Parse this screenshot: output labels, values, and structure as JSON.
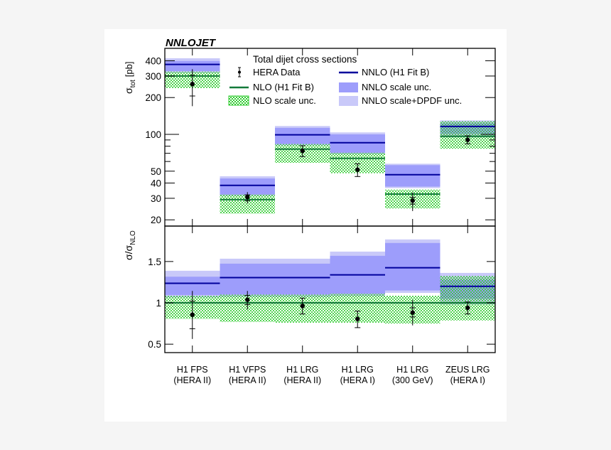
{
  "chart_data": {
    "type": "bar",
    "brand_label": "NNLOJET",
    "legend_title": "Total dijet cross sections",
    "legend": {
      "data": "HERA Data",
      "nlo": "NLO (H1 Fit B)",
      "nlo_band": "NLO scale unc.",
      "nnlo": "NNLO (H1 Fit B)",
      "nnlo_scale": "NNLO scale unc.",
      "nnlo_dpdf": "NNLO scale+DPDF unc."
    },
    "legend_placement": "top-right",
    "colors": {
      "nnlo_line": "#00009c",
      "nnlo_scale": "#9d9dfb",
      "nnlo_dpdf": "#c9c9f9",
      "nlo_line": "#137a3a",
      "nlo_hatch": "#33cc33",
      "data": "#000000"
    },
    "top_panel": {
      "ylabel": "σ",
      "ylabel_sub": "tot",
      "ylabel_unit": "[pb]",
      "scale": "log",
      "ylim": [
        17.8,
        505
      ],
      "yticks": [
        "20",
        "30",
        "40",
        "50",
        "100",
        "200",
        "300",
        "400"
      ]
    },
    "ratio_panel": {
      "ylabel": "σ/σ",
      "ylabel_sub": "NLO",
      "scale": "linear",
      "ylim": [
        0.4,
        1.92
      ],
      "yticks": [
        "0.5",
        "1",
        "1.5"
      ]
    },
    "categories": [
      {
        "line1": "H1 FPS",
        "line2": "(HERA II)"
      },
      {
        "line1": "H1 VFPS",
        "line2": "(HERA II)"
      },
      {
        "line1": "H1 LRG",
        "line2": "(HERA II)"
      },
      {
        "line1": "H1 LRG",
        "line2": "(HERA I)"
      },
      {
        "line1": "H1 LRG",
        "line2": "(300 GeV)"
      },
      {
        "line1": "ZEUS LRG",
        "line2": "(HERA I)"
      }
    ],
    "cross_sections_pb": [
      {
        "nlo": 300,
        "nlo_band": [
          239,
          326
        ],
        "nnlo": 373,
        "nnlo_scale": [
          329,
          398
        ],
        "nnlo_dpdf": [
          318,
          419
        ],
        "data": 258,
        "err_inner": [
          206,
          304
        ],
        "err_outer": [
          170,
          341
        ]
      },
      {
        "nlo": 29.3,
        "nlo_band": [
          22.5,
          32.2
        ],
        "nnlo": 38.3,
        "nnlo_scale": [
          32.2,
          43.6
        ],
        "nnlo_dpdf": [
          31.3,
          45.4
        ],
        "data": 30.7,
        "err_inner": [
          28.7,
          32.0
        ],
        "err_outer": [
          27.2,
          33.7
        ]
      },
      {
        "nlo": 75.8,
        "nlo_band": [
          58.5,
          83.4
        ],
        "nnlo": 99.1,
        "nnlo_scale": [
          83.4,
          113
        ],
        "nnlo_dpdf": [
          81,
          117
        ],
        "data": 73.3,
        "err_inner": [
          65.8,
          80.7
        ],
        "err_outer": [
          65.8,
          80.7
        ]
      },
      {
        "nlo": 63.7,
        "nlo_band": [
          48.1,
          70.7
        ],
        "nnlo": 85.5,
        "nnlo_scale": [
          70.7,
          100
        ],
        "nnlo_dpdf": [
          68.8,
          103.7
        ],
        "data": 51.4,
        "err_inner": [
          45.2,
          57.5
        ],
        "err_outer": [
          45.2,
          57.5
        ]
      },
      {
        "nlo": 32.5,
        "nlo_band": [
          24.8,
          35.3
        ],
        "nnlo": 46.8,
        "nnlo_scale": [
          37.4,
          56.0
        ],
        "nnlo_dpdf": [
          36.4,
          57.5
        ],
        "data": 28.7,
        "err_inner": [
          26.9,
          30.5
        ],
        "err_outer": [
          23.6,
          33.5
        ]
      },
      {
        "nlo": 96.4,
        "nlo_band": [
          76.3,
          128
        ],
        "nnlo": 116,
        "nnlo_scale": [
          101,
          123
        ],
        "nnlo_dpdf": [
          94.5,
          130
        ],
        "data": 90.2,
        "err_inner": [
          83.7,
          97.3
        ],
        "err_outer": [
          83.7,
          97.3
        ]
      }
    ],
    "ratio_to_nlo": [
      {
        "nlo_band": [
          0.807,
          1.086
        ],
        "nnlo": 1.236,
        "nnlo_scale": [
          1.095,
          1.316
        ],
        "nnlo_dpdf": [
          1.065,
          1.388
        ],
        "data": 0.856,
        "err_inner": [
          0.687,
          1.02
        ],
        "err_outer": [
          0.563,
          1.144
        ]
      },
      {
        "nlo_band": [
          0.77,
          1.1
        ],
        "nnlo": 1.305,
        "nnlo_scale": [
          1.1,
          1.474
        ],
        "nnlo_dpdf": [
          1.07,
          1.534
        ],
        "data": 1.037,
        "err_inner": [
          0.98,
          1.09
        ],
        "err_outer": [
          0.92,
          1.144
        ]
      },
      {
        "nlo_band": [
          0.76,
          1.1
        ],
        "nnlo": 1.305,
        "nnlo_scale": [
          1.1,
          1.474
        ],
        "nnlo_dpdf": [
          1.07,
          1.534
        ],
        "data": 0.963,
        "err_inner": [
          0.865,
          1.057
        ],
        "err_outer": [
          0.865,
          1.057
        ]
      },
      {
        "nlo_band": [
          0.76,
          1.11
        ],
        "nnlo": 1.339,
        "nnlo_scale": [
          1.11,
          1.569
        ],
        "nnlo_dpdf": [
          1.08,
          1.62
        ],
        "data": 0.805,
        "err_inner": [
          0.7,
          0.9
        ],
        "err_outer": [
          0.7,
          0.9
        ]
      },
      {
        "nlo_band": [
          0.75,
          1.086
        ],
        "nnlo": 1.425,
        "nnlo_scale": [
          1.15,
          1.724
        ],
        "nnlo_dpdf": [
          1.12,
          1.767
        ],
        "data": 0.882,
        "err_inner": [
          0.83,
          0.94
        ],
        "err_outer": [
          0.727,
          1.034
        ]
      },
      {
        "nlo_band": [
          0.787,
          1.325
        ],
        "nnlo": 1.2,
        "nnlo_scale": [
          1.05,
          1.28
        ],
        "nnlo_dpdf": [
          0.98,
          1.362
        ],
        "data": 0.94,
        "err_inner": [
          0.865,
          1.01
        ],
        "err_outer": [
          0.865,
          1.01
        ]
      }
    ]
  }
}
